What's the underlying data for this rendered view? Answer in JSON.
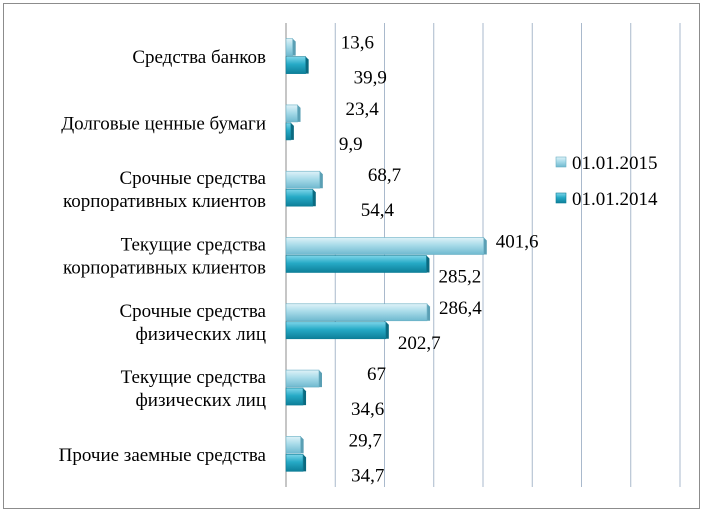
{
  "chart_data": {
    "type": "bar",
    "orientation": "horizontal",
    "categories": [
      [
        "Средства банков"
      ],
      [
        "Долговые ценные бумаги"
      ],
      [
        "Срочные средства",
        "корпоративных клиентов"
      ],
      [
        "Текущие средства",
        "корпоративных клиентов"
      ],
      [
        "Срочные средства",
        "физических лиц"
      ],
      [
        "Текущие средства",
        "физических лиц"
      ],
      [
        "Прочие заемные средства"
      ]
    ],
    "series": [
      {
        "name": "01.01.2015",
        "values": [
          13.6,
          23.4,
          68.7,
          401.6,
          286.4,
          67,
          29.7
        ],
        "labels": [
          "13,6",
          "23,4",
          "68,7",
          "401,6",
          "286,4",
          "67",
          "29,7"
        ],
        "color": "#8fcfe0"
      },
      {
        "name": "01.01.2014",
        "values": [
          39.9,
          9.9,
          54.4,
          285.2,
          202.7,
          34.6,
          34.7
        ],
        "labels": [
          "39,9",
          "9,9",
          "54,4",
          "285,2",
          "202,7",
          "34,6",
          "34,7"
        ],
        "color": "#1fa3bf"
      }
    ],
    "xlim": [
      0,
      800
    ],
    "grid": true,
    "legend_position": "right"
  }
}
